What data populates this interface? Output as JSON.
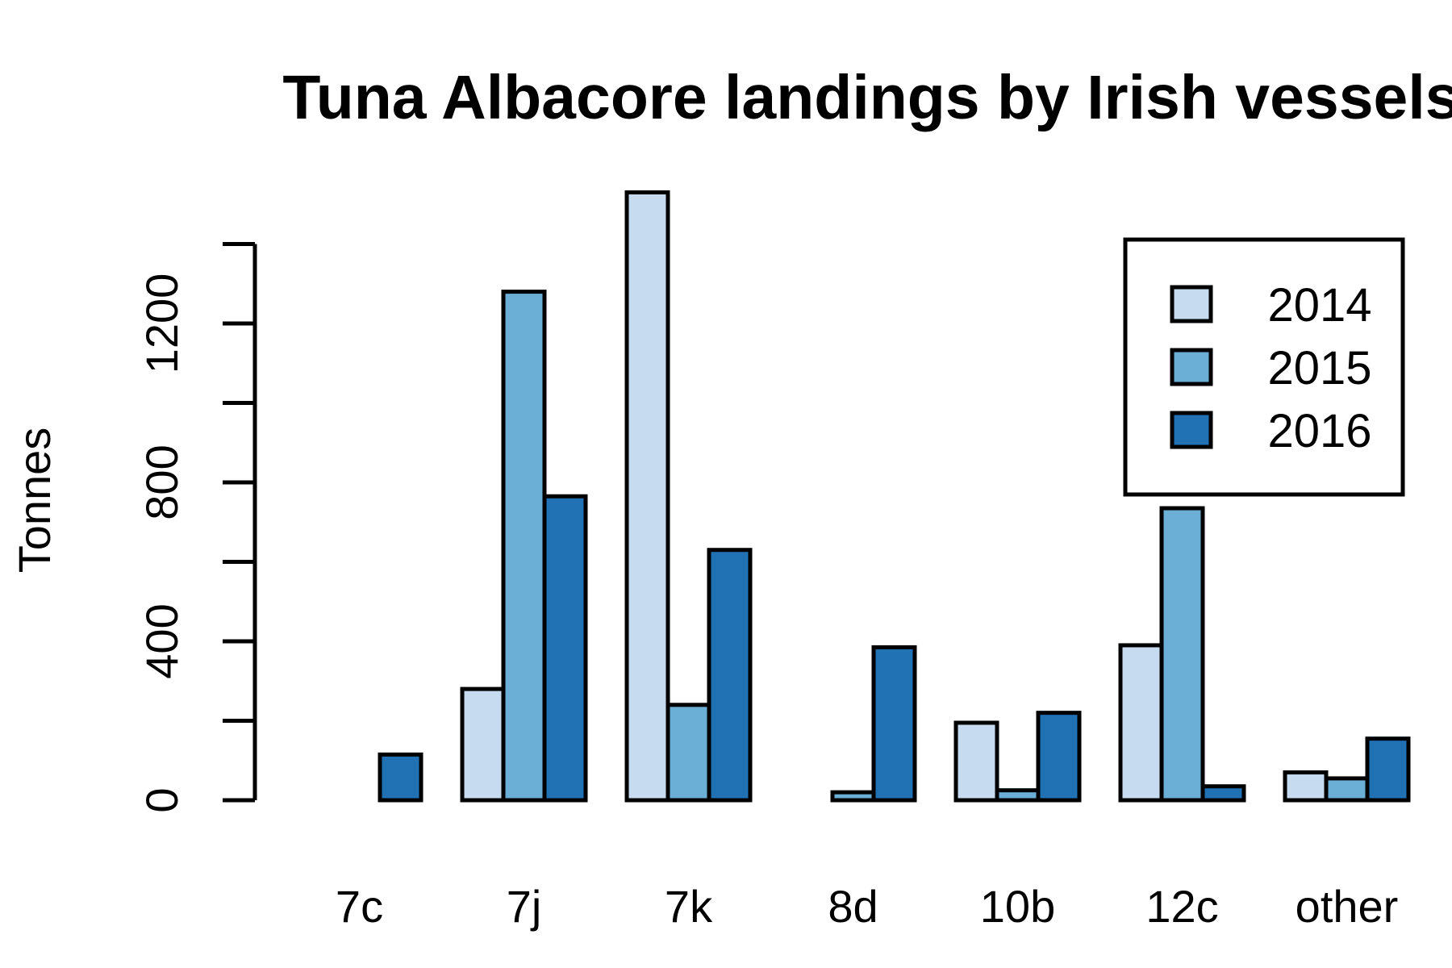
{
  "chart_data": {
    "type": "bar",
    "title": "Tuna Albacore landings by Irish vessels",
    "xlabel": "",
    "ylabel": "Tonnes",
    "categories": [
      "7c",
      "7j",
      "7k",
      "8d",
      "10b",
      "12c",
      "other"
    ],
    "series": [
      {
        "name": "2014",
        "color": "#c6dbef",
        "values": [
          0,
          280,
          1530,
          0,
          195,
          390,
          70
        ]
      },
      {
        "name": "2015",
        "color": "#6baed6",
        "values": [
          0,
          1280,
          240,
          20,
          25,
          735,
          55
        ]
      },
      {
        "name": "2016",
        "color": "#2171b5",
        "values": [
          115,
          765,
          630,
          385,
          220,
          35,
          155
        ]
      }
    ],
    "yticks": [
      0,
      400,
      800,
      1200
    ],
    "ylim": [
      0,
      1400
    ],
    "grid": false,
    "legend_position": "top-right"
  }
}
